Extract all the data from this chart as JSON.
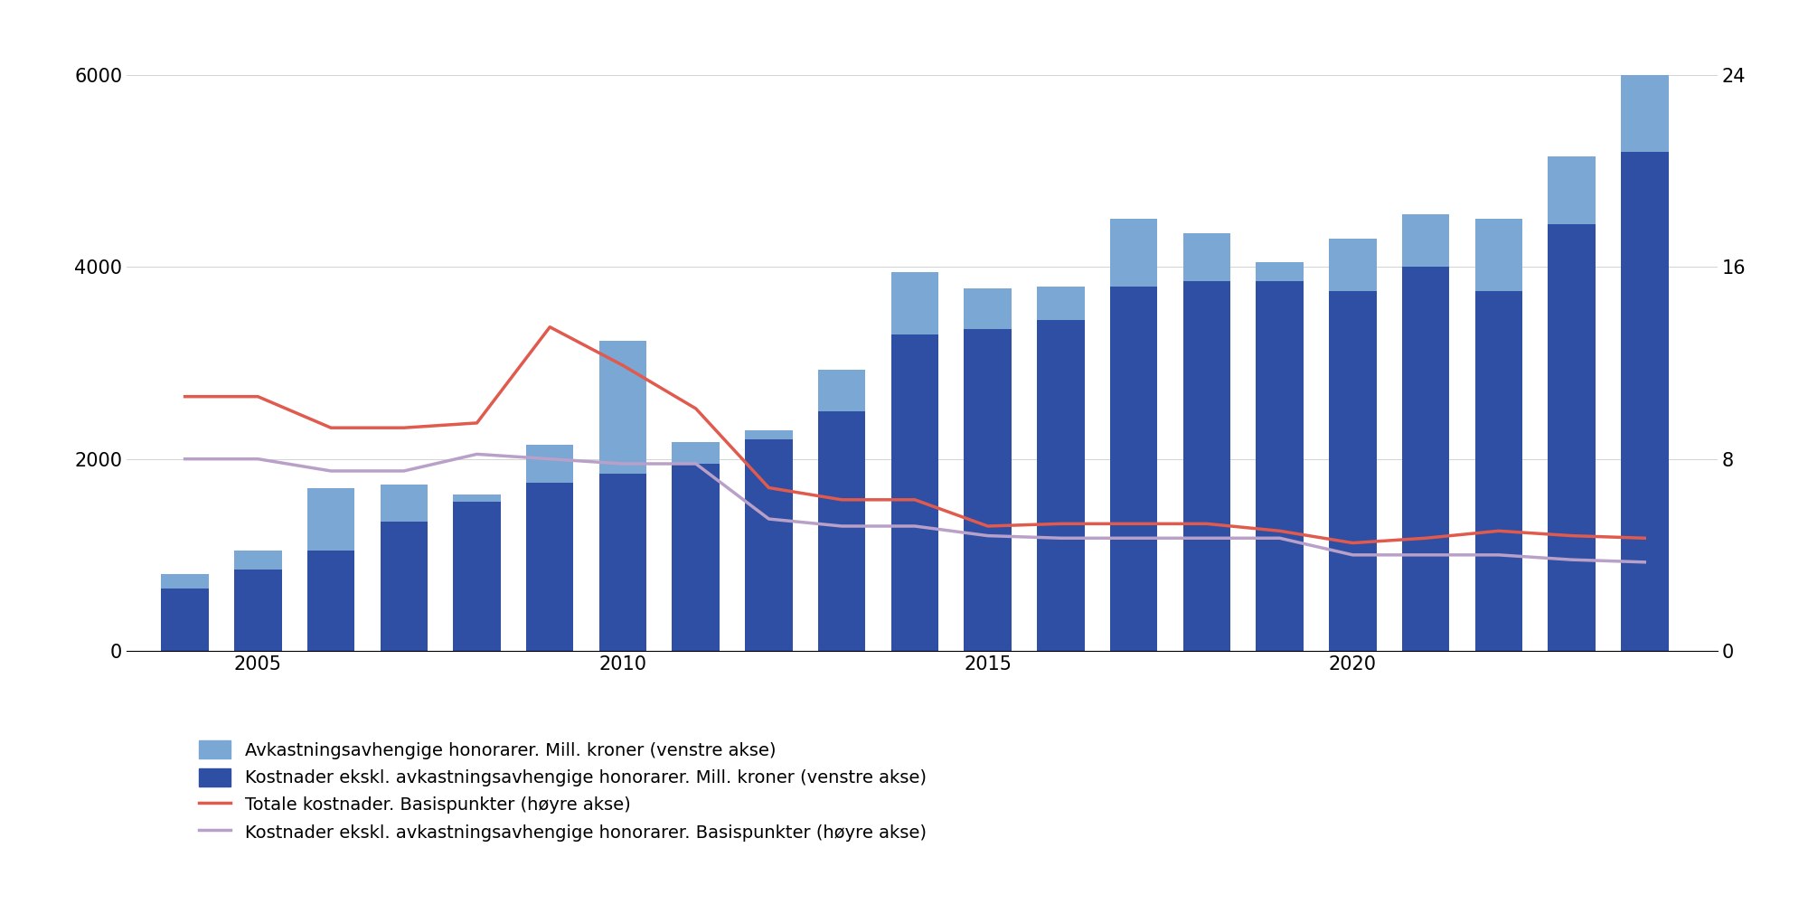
{
  "years": [
    2004,
    2005,
    2006,
    2007,
    2008,
    2009,
    2010,
    2011,
    2012,
    2013,
    2014,
    2015,
    2016,
    2017,
    2018,
    2019,
    2020,
    2021,
    2022,
    2023,
    2024
  ],
  "base_costs": [
    650,
    850,
    1050,
    1350,
    1550,
    1750,
    1850,
    1950,
    2200,
    2500,
    3300,
    3350,
    3450,
    3800,
    3850,
    3850,
    3750,
    4000,
    3750,
    4450,
    5200
  ],
  "perf_fees": [
    150,
    200,
    650,
    380,
    80,
    400,
    1380,
    230,
    100,
    430,
    650,
    430,
    350,
    700,
    500,
    200,
    550,
    550,
    750,
    700,
    800
  ],
  "total_bp": [
    10.6,
    10.6,
    9.3,
    9.3,
    9.5,
    13.5,
    11.9,
    10.1,
    6.8,
    6.3,
    6.3,
    5.2,
    5.3,
    5.3,
    5.3,
    5.0,
    4.5,
    4.7,
    5.0,
    4.8,
    4.7
  ],
  "base_bp": [
    8.0,
    8.0,
    7.5,
    7.5,
    8.2,
    8.0,
    7.8,
    7.8,
    5.5,
    5.2,
    5.2,
    4.8,
    4.7,
    4.7,
    4.7,
    4.7,
    4.0,
    4.0,
    4.0,
    3.8,
    3.7
  ],
  "color_base": "#2e4fa3",
  "color_perf": "#7ba7d4",
  "color_total_line": "#e05a4e",
  "color_base_line": "#b9a0c8",
  "legend_labels": [
    "Avkastningsavhengige honorarer. Mill. kroner (venstre akse)",
    "Kostnader ekskl. avkastningsavhengige honorarer. Mill. kroner (venstre akse)",
    "Totale kostnader. Basispunkter (høyre akse)",
    "Kostnader ekskl. avkastningsavhengige honorarer. Basispunkter (høyre akse)"
  ],
  "ylim_left": [
    0,
    6500
  ],
  "ylim_right": [
    0,
    26
  ],
  "yticks_left": [
    0,
    2000,
    4000,
    6000
  ],
  "yticks_right": [
    0,
    8,
    16,
    24
  ],
  "xtick_years": [
    2005,
    2010,
    2015,
    2020
  ],
  "background_color": "#ffffff"
}
